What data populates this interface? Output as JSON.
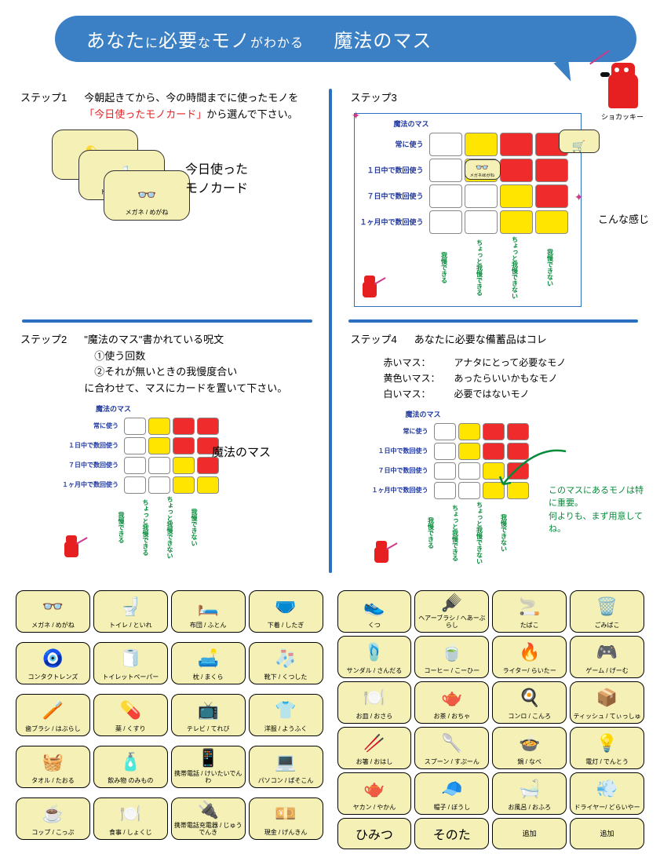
{
  "title": {
    "t1": "あなた",
    "t2": "に",
    "t3": "必要",
    "t4": "な",
    "t5": "モノ",
    "t6": "がわかる",
    "t7": "魔法のマス"
  },
  "mascot_label": "ショカッキー",
  "steps": {
    "s1": {
      "label": "ステップ1",
      "text_a": "今朝起きてから、今の時間までに使ったモノを",
      "text_hl": "「今日使ったモノカード」",
      "text_b": "から選んで下さい。",
      "caption_a": "今日使った",
      "caption_b": "モノカード",
      "cards": [
        {
          "label": "薬 / くすり",
          "icon": "💊"
        },
        {
          "label": "トイレ / といれ",
          "icon": "🚽"
        },
        {
          "label": "メガネ / めがね",
          "icon": "👓"
        }
      ]
    },
    "s2": {
      "label": "ステップ2",
      "text": "\"魔法のマス\"書かれている呪文\n　①使う回数\n　②それが無いときの我慢度合い\nに合わせて、マスにカードを置いて下さい。",
      "caption": "魔法のマス"
    },
    "s3": {
      "label": "ステップ3",
      "caption": "こんな感じ",
      "overlay1": {
        "label": "",
        "icon": "🛒"
      },
      "overlay2": {
        "label": "メガネ/めがね",
        "icon": "👓"
      }
    },
    "s4": {
      "label": "ステップ4",
      "heading": "あなたに必要な備蓄品はコレ",
      "legend": [
        {
          "k": "赤いマス：",
          "v": "アナタにとって必要なモノ"
        },
        {
          "k": "黄色いマス：",
          "v": "あったらいいかもなモノ"
        },
        {
          "k": "白いマス：",
          "v": "必要ではないモノ"
        }
      ],
      "note": "このマスにあるモノは特に重要。\n何よりも、まず用意してね。"
    }
  },
  "grid": {
    "title": "魔法のマス",
    "rows": [
      "常に使う",
      "１日中で数回使う",
      "７日中で数回使う",
      "１ヶ月中で数回使う"
    ],
    "cols": [
      "我慢できる",
      "ちょっと我慢できる",
      "ちょっと我慢できない",
      "我慢できない"
    ],
    "colors": [
      [
        "w",
        "y",
        "r",
        "r"
      ],
      [
        "w",
        "y",
        "r",
        "r"
      ],
      [
        "w",
        "w",
        "y",
        "r"
      ],
      [
        "w",
        "w",
        "y",
        "y"
      ]
    ],
    "cell_colors": {
      "w": "#ffffff",
      "y": "#ffe500",
      "r": "#ef2b2b"
    },
    "row_label_color": "#2038a0",
    "col_label_color": "#058a3a"
  },
  "items_left": [
    {
      "l": "メガネ / めがね",
      "i": "👓"
    },
    {
      "l": "トイレ / といれ",
      "i": "🚽"
    },
    {
      "l": "布団 / ふとん",
      "i": "🛏️"
    },
    {
      "l": "下着 / したぎ",
      "i": "🩲"
    },
    {
      "l": "コンタクトレンズ",
      "i": "🧿"
    },
    {
      "l": "トイレットペーパー",
      "i": "🧻"
    },
    {
      "l": "枕 / まくら",
      "i": "🛋️"
    },
    {
      "l": "靴下 / くつした",
      "i": "🧦"
    },
    {
      "l": "歯ブラシ / はぶらし",
      "i": "🪥"
    },
    {
      "l": "薬 / くすり",
      "i": "💊"
    },
    {
      "l": "テレビ / てれび",
      "i": "📺"
    },
    {
      "l": "洋服 / ようふく",
      "i": "👕"
    },
    {
      "l": "タオル / たおる",
      "i": "🧺"
    },
    {
      "l": "飲み物 のみもの",
      "i": "🧴"
    },
    {
      "l": "携帯電話 / けいたいでんわ",
      "i": "📱"
    },
    {
      "l": "パソコン / ぱそこん",
      "i": "💻"
    },
    {
      "l": "コップ / こっぷ",
      "i": "☕"
    },
    {
      "l": "食事 / しょくじ",
      "i": "🍽️"
    },
    {
      "l": "携帯電話充電器 / じゅうでんき",
      "i": "🔌"
    },
    {
      "l": "現金 / げんきん",
      "i": "💴"
    }
  ],
  "items_right": [
    {
      "l": "くつ",
      "i": "👟"
    },
    {
      "l": "ヘアーブラシ / へあーぶらし",
      "i": "🪮"
    },
    {
      "l": "たばこ",
      "i": "🚬"
    },
    {
      "l": "ごみばこ",
      "i": "🗑️"
    },
    {
      "l": "サンダル / さんだる",
      "i": "🩴"
    },
    {
      "l": "コーヒー / こーひー",
      "i": "🍵"
    },
    {
      "l": "ライター/ らいたー",
      "i": "🔥"
    },
    {
      "l": "ゲーム / げーむ",
      "i": "🎮"
    },
    {
      "l": "お皿 / おさら",
      "i": "🍽️"
    },
    {
      "l": "お茶 / おちゃ",
      "i": "🫖"
    },
    {
      "l": "コンロ / こんろ",
      "i": "🍳"
    },
    {
      "l": "ティッシュ / てぃっしゅ",
      "i": "📦"
    },
    {
      "l": "お箸 / おはし",
      "i": "🥢"
    },
    {
      "l": "スプーン / すぷーん",
      "i": "🥄"
    },
    {
      "l": "鍋 / なべ",
      "i": "🍲"
    },
    {
      "l": "電灯 / でんとう",
      "i": "💡"
    },
    {
      "l": "ヤカン / やかん",
      "i": "🫖"
    },
    {
      "l": "帽子 / ぼうし",
      "i": "🧢"
    },
    {
      "l": "お風呂 / おふろ",
      "i": "🛁"
    },
    {
      "l": "ドライヤー/ どらいやー",
      "i": "💨"
    }
  ],
  "specials": [
    "ひみつ",
    "そのた",
    "追加",
    "追加"
  ],
  "colors": {
    "banner": "#3b7fc4",
    "accent": "#e62020",
    "sep": "#2b6fc0",
    "card_bg": "#f4f0b6",
    "green": "#058a3a",
    "pink": "#cc3b88"
  }
}
